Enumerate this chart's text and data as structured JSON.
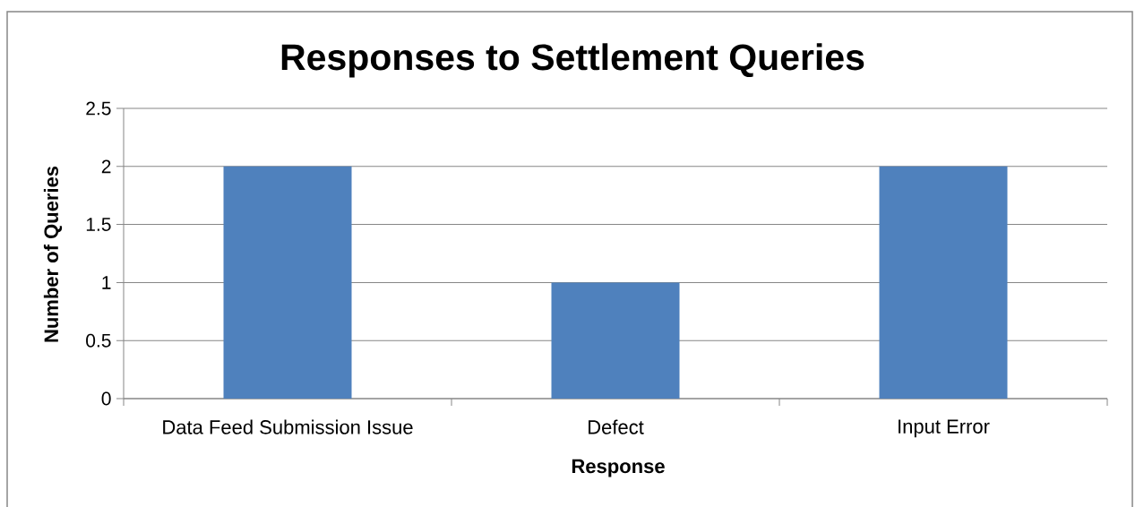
{
  "chart_data": {
    "type": "bar",
    "title": "Responses to Settlement Queries",
    "xlabel": "Response",
    "ylabel": "Number of Queries",
    "categories": [
      "Data Feed Submission Issue",
      "Defect",
      "Input Error"
    ],
    "values": [
      2,
      1,
      2
    ],
    "color": "#4f81bd",
    "ylim": [
      0,
      2.5
    ],
    "yticks": [
      0,
      0.5,
      1,
      1.5,
      2,
      2.5
    ],
    "grid": "y"
  }
}
